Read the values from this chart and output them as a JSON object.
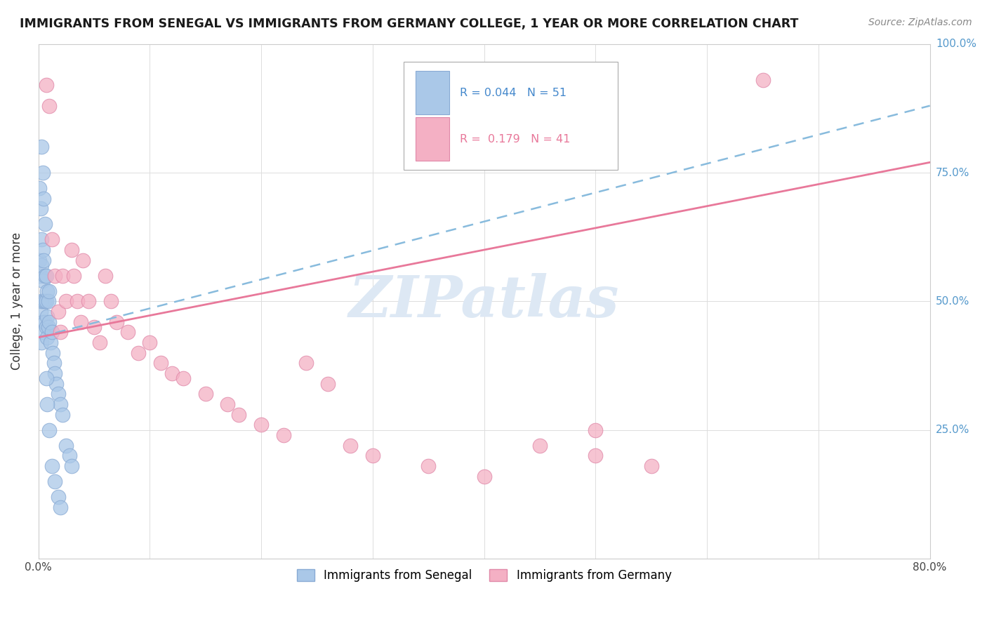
{
  "title": "IMMIGRANTS FROM SENEGAL VS IMMIGRANTS FROM GERMANY COLLEGE, 1 YEAR OR MORE CORRELATION CHART",
  "source": "Source: ZipAtlas.com",
  "ylabel": "College, 1 year or more",
  "xlim": [
    0.0,
    0.8
  ],
  "ylim": [
    0.0,
    1.0
  ],
  "xticks": [
    0.0,
    0.1,
    0.2,
    0.3,
    0.4,
    0.5,
    0.6,
    0.7,
    0.8
  ],
  "yticks": [
    0.0,
    0.25,
    0.5,
    0.75,
    1.0
  ],
  "ytick_labels_right": [
    "",
    "25.0%",
    "50.0%",
    "75.0%",
    "100.0%"
  ],
  "senegal_color_fill": "#aac8e8",
  "senegal_color_edge": "#88aad4",
  "germany_color_fill": "#f4b0c4",
  "germany_color_edge": "#e088a8",
  "senegal_line_color": "#88aad4",
  "germany_line_color": "#e8789a",
  "watermark_text": "ZIPatlas",
  "watermark_color": "#dde8f4",
  "legend_r1": "R = 0.044",
  "legend_n1": "N = 51",
  "legend_r2": "R =  0.179",
  "legend_n2": "N = 41",
  "senegal_x": [
    0.001,
    0.001,
    0.002,
    0.002,
    0.002,
    0.003,
    0.003,
    0.003,
    0.003,
    0.004,
    0.004,
    0.004,
    0.005,
    0.005,
    0.005,
    0.006,
    0.006,
    0.006,
    0.007,
    0.007,
    0.007,
    0.008,
    0.008,
    0.008,
    0.009,
    0.009,
    0.01,
    0.01,
    0.011,
    0.012,
    0.013,
    0.014,
    0.015,
    0.016,
    0.018,
    0.02,
    0.022,
    0.025,
    0.028,
    0.03,
    0.003,
    0.004,
    0.005,
    0.006,
    0.007,
    0.008,
    0.01,
    0.012,
    0.015,
    0.018,
    0.02
  ],
  "senegal_y": [
    0.72,
    0.58,
    0.68,
    0.55,
    0.48,
    0.62,
    0.57,
    0.5,
    0.42,
    0.6,
    0.54,
    0.46,
    0.58,
    0.5,
    0.44,
    0.55,
    0.5,
    0.46,
    0.55,
    0.5,
    0.45,
    0.52,
    0.47,
    0.43,
    0.5,
    0.45,
    0.52,
    0.46,
    0.42,
    0.44,
    0.4,
    0.38,
    0.36,
    0.34,
    0.32,
    0.3,
    0.28,
    0.22,
    0.2,
    0.18,
    0.8,
    0.75,
    0.7,
    0.65,
    0.35,
    0.3,
    0.25,
    0.18,
    0.15,
    0.12,
    0.1
  ],
  "germany_x": [
    0.007,
    0.01,
    0.012,
    0.015,
    0.018,
    0.02,
    0.022,
    0.025,
    0.03,
    0.032,
    0.035,
    0.038,
    0.04,
    0.045,
    0.05,
    0.055,
    0.06,
    0.065,
    0.07,
    0.08,
    0.09,
    0.1,
    0.11,
    0.12,
    0.13,
    0.15,
    0.17,
    0.18,
    0.2,
    0.22,
    0.24,
    0.26,
    0.28,
    0.3,
    0.35,
    0.4,
    0.45,
    0.5,
    0.55,
    0.65,
    0.5
  ],
  "germany_y": [
    0.92,
    0.88,
    0.62,
    0.55,
    0.48,
    0.44,
    0.55,
    0.5,
    0.6,
    0.55,
    0.5,
    0.46,
    0.58,
    0.5,
    0.45,
    0.42,
    0.55,
    0.5,
    0.46,
    0.44,
    0.4,
    0.42,
    0.38,
    0.36,
    0.35,
    0.32,
    0.3,
    0.28,
    0.26,
    0.24,
    0.38,
    0.34,
    0.22,
    0.2,
    0.18,
    0.16,
    0.22,
    0.2,
    0.18,
    0.93,
    0.25
  ]
}
